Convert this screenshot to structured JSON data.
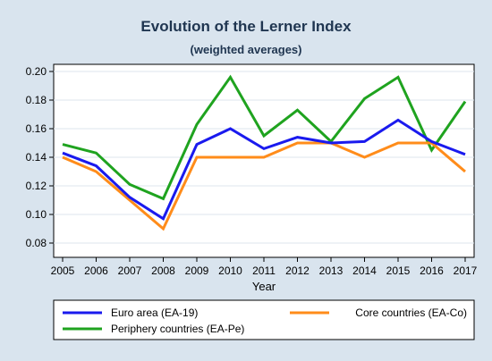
{
  "chart_data": {
    "type": "line",
    "title": "Evolution of the Lerner Index",
    "subtitle": "(weighted averages)",
    "xlabel": "Year",
    "ylabel": "",
    "x": [
      "2005",
      "2006",
      "2007",
      "2008",
      "2009",
      "2010",
      "2011",
      "2012",
      "2013",
      "2014",
      "2015",
      "2016",
      "2017"
    ],
    "ylim": [
      0.07,
      0.205
    ],
    "yticks": [
      "0.08",
      "0.10",
      "0.12",
      "0.14",
      "0.16",
      "0.18",
      "0.20"
    ],
    "grid": true,
    "legend_position": "bottom",
    "series": [
      {
        "name": "Euro area (EA-19)",
        "color": "#1a1aee",
        "values": [
          0.143,
          0.134,
          0.112,
          0.097,
          0.149,
          0.16,
          0.146,
          0.154,
          0.15,
          0.151,
          0.166,
          0.151,
          0.142
        ]
      },
      {
        "name": "Core countries (EA-Co)",
        "color": "#ff8c1a",
        "values": [
          0.14,
          0.13,
          0.11,
          0.09,
          0.14,
          0.14,
          0.14,
          0.15,
          0.15,
          0.14,
          0.15,
          0.15,
          0.13
        ]
      },
      {
        "name": "Periphery countries (EA-Pe)",
        "color": "#1fa31f",
        "values": [
          0.149,
          0.143,
          0.121,
          0.111,
          0.163,
          0.196,
          0.155,
          0.173,
          0.151,
          0.181,
          0.196,
          0.145,
          0.179
        ]
      }
    ]
  }
}
